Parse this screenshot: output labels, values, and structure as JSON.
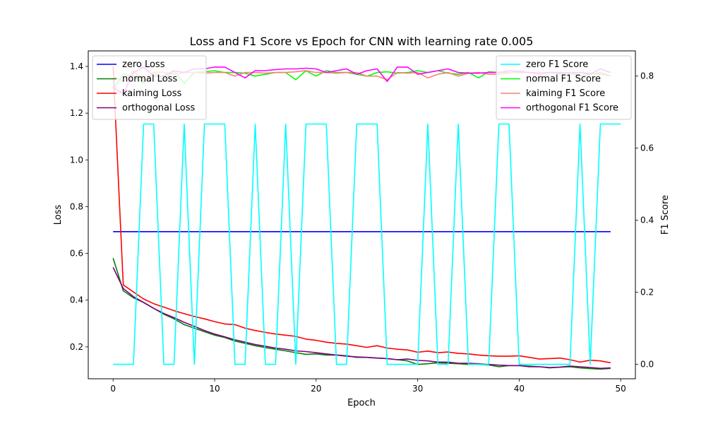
{
  "chart_data": {
    "type": "line",
    "title": "Loss and F1 Score vs Epoch for CNN with learning rate 0.005",
    "xlabel": "Epoch",
    "ylabel_left": "Loss",
    "ylabel_right": "F1 Score",
    "xlim": [
      -2.45,
      51.45
    ],
    "ylim_left": [
      0.0635,
      1.4665
    ],
    "ylim_right": [
      -0.04,
      0.87
    ],
    "xticks": [
      0,
      10,
      20,
      30,
      40,
      50
    ],
    "yticks_left": [
      0.2,
      0.4,
      0.6,
      0.8,
      1.0,
      1.2,
      1.4
    ],
    "yticks_right": [
      0.0,
      0.2,
      0.4,
      0.6,
      0.8
    ],
    "legend_left": {
      "placement": "top-left"
    },
    "legend_right": {
      "placement": "top-right"
    },
    "loss_series": [
      {
        "name": "zero Loss",
        "color": "#0000ff",
        "values": [
          0.693,
          0.693,
          0.693,
          0.693,
          0.693,
          0.693,
          0.693,
          0.693,
          0.693,
          0.693,
          0.693,
          0.693,
          0.693,
          0.693,
          0.693,
          0.693,
          0.693,
          0.693,
          0.693,
          0.693,
          0.693,
          0.693,
          0.693,
          0.693,
          0.693,
          0.693,
          0.693,
          0.693,
          0.693,
          0.693,
          0.693,
          0.693,
          0.693,
          0.693,
          0.693,
          0.693,
          0.693,
          0.693,
          0.693,
          0.693,
          0.693,
          0.693,
          0.693,
          0.693,
          0.693,
          0.693,
          0.693,
          0.693,
          0.693,
          0.693
        ]
      },
      {
        "name": "normal Loss",
        "color": "#008000",
        "values": [
          0.58,
          0.44,
          0.41,
          0.39,
          0.365,
          0.34,
          0.32,
          0.295,
          0.28,
          0.265,
          0.25,
          0.24,
          0.225,
          0.215,
          0.205,
          0.197,
          0.19,
          0.183,
          0.175,
          0.168,
          0.17,
          0.165,
          0.165,
          0.162,
          0.155,
          0.155,
          0.152,
          0.15,
          0.145,
          0.14,
          0.125,
          0.128,
          0.132,
          0.13,
          0.128,
          0.125,
          0.125,
          0.123,
          0.115,
          0.12,
          0.12,
          0.118,
          0.115,
          0.11,
          0.113,
          0.115,
          0.11,
          0.107,
          0.105,
          0.108
        ]
      },
      {
        "name": "kaiming Loss",
        "color": "#ff0000",
        "values": [
          1.4,
          0.465,
          0.435,
          0.405,
          0.385,
          0.37,
          0.355,
          0.342,
          0.33,
          0.32,
          0.308,
          0.298,
          0.295,
          0.28,
          0.27,
          0.262,
          0.255,
          0.25,
          0.245,
          0.233,
          0.228,
          0.22,
          0.215,
          0.212,
          0.205,
          0.198,
          0.205,
          0.195,
          0.19,
          0.187,
          0.177,
          0.182,
          0.175,
          0.178,
          0.172,
          0.17,
          0.165,
          0.162,
          0.16,
          0.16,
          0.162,
          0.155,
          0.148,
          0.15,
          0.152,
          0.145,
          0.135,
          0.143,
          0.14,
          0.132
        ]
      },
      {
        "name": "orthogonal Loss",
        "color": "#800080",
        "values": [
          0.54,
          0.45,
          0.415,
          0.39,
          0.365,
          0.343,
          0.325,
          0.305,
          0.288,
          0.27,
          0.255,
          0.243,
          0.23,
          0.22,
          0.21,
          0.203,
          0.195,
          0.19,
          0.183,
          0.18,
          0.175,
          0.17,
          0.165,
          0.16,
          0.157,
          0.155,
          0.152,
          0.15,
          0.145,
          0.148,
          0.142,
          0.14,
          0.135,
          0.135,
          0.13,
          0.13,
          0.128,
          0.125,
          0.122,
          0.12,
          0.12,
          0.115,
          0.115,
          0.112,
          0.113,
          0.118,
          0.115,
          0.112,
          0.108,
          0.11
        ]
      }
    ],
    "f1_series": [
      {
        "name": "zero F1 Score",
        "color": "#00ffff",
        "values": [
          0,
          0,
          0,
          0.667,
          0.667,
          0,
          0,
          0.667,
          0,
          0.667,
          0.667,
          0.667,
          0,
          0,
          0.667,
          0,
          0,
          0.667,
          0,
          0.667,
          0.667,
          0.667,
          0,
          0,
          0.667,
          0.667,
          0.667,
          0,
          0,
          0,
          0,
          0.667,
          0,
          0,
          0.667,
          0,
          0,
          0,
          0.667,
          0.667,
          0,
          0,
          0,
          0,
          0,
          0,
          0.667,
          0,
          0.667,
          0.667,
          0.667
        ]
      },
      {
        "name": "normal F1 Score",
        "color": "#00ff00",
        "values": [
          0.765,
          0.805,
          0.8,
          0.78,
          0.81,
          0.79,
          0.815,
          0.78,
          0.81,
          0.812,
          0.815,
          0.81,
          0.81,
          0.808,
          0.8,
          0.805,
          0.81,
          0.81,
          0.79,
          0.815,
          0.8,
          0.815,
          0.81,
          0.81,
          0.805,
          0.8,
          0.81,
          0.812,
          0.808,
          0.81,
          0.815,
          0.81,
          0.815,
          0.808,
          0.805,
          0.81,
          0.795,
          0.812,
          0.81,
          0.81,
          0.81,
          0.81,
          0.805,
          0.81,
          0.805,
          0.81,
          0.8,
          0.805,
          0.81,
          0.8
        ]
      },
      {
        "name": "kaiming F1 Score",
        "color": "#fa8072",
        "values": [
          0.8,
          0.785,
          0.815,
          0.785,
          0.81,
          0.81,
          0.805,
          0.81,
          0.81,
          0.808,
          0.81,
          0.81,
          0.8,
          0.81,
          0.81,
          0.808,
          0.81,
          0.81,
          0.812,
          0.815,
          0.81,
          0.81,
          0.808,
          0.81,
          0.81,
          0.8,
          0.8,
          0.79,
          0.81,
          0.808,
          0.81,
          0.795,
          0.805,
          0.81,
          0.8,
          0.808,
          0.81,
          0.805,
          0.805,
          0.808,
          0.815,
          0.81,
          0.805,
          0.81,
          0.808,
          0.81,
          0.81,
          0.808,
          0.805,
          0.8
        ]
      },
      {
        "name": "orthogonal F1 Score",
        "color": "#ff00ff",
        "values": [
          0.77,
          0.75,
          0.81,
          0.825,
          0.8,
          0.8,
          0.815,
          0.81,
          0.82,
          0.82,
          0.825,
          0.825,
          0.81,
          0.795,
          0.815,
          0.815,
          0.818,
          0.82,
          0.82,
          0.822,
          0.82,
          0.81,
          0.815,
          0.82,
          0.805,
          0.815,
          0.82,
          0.785,
          0.825,
          0.825,
          0.805,
          0.81,
          0.815,
          0.82,
          0.81,
          0.808,
          0.808,
          0.81,
          0.81,
          0.815,
          0.812,
          0.81,
          0.808,
          0.81,
          0.81,
          0.808,
          0.81,
          0.805,
          0.82,
          0.81
        ]
      }
    ]
  }
}
